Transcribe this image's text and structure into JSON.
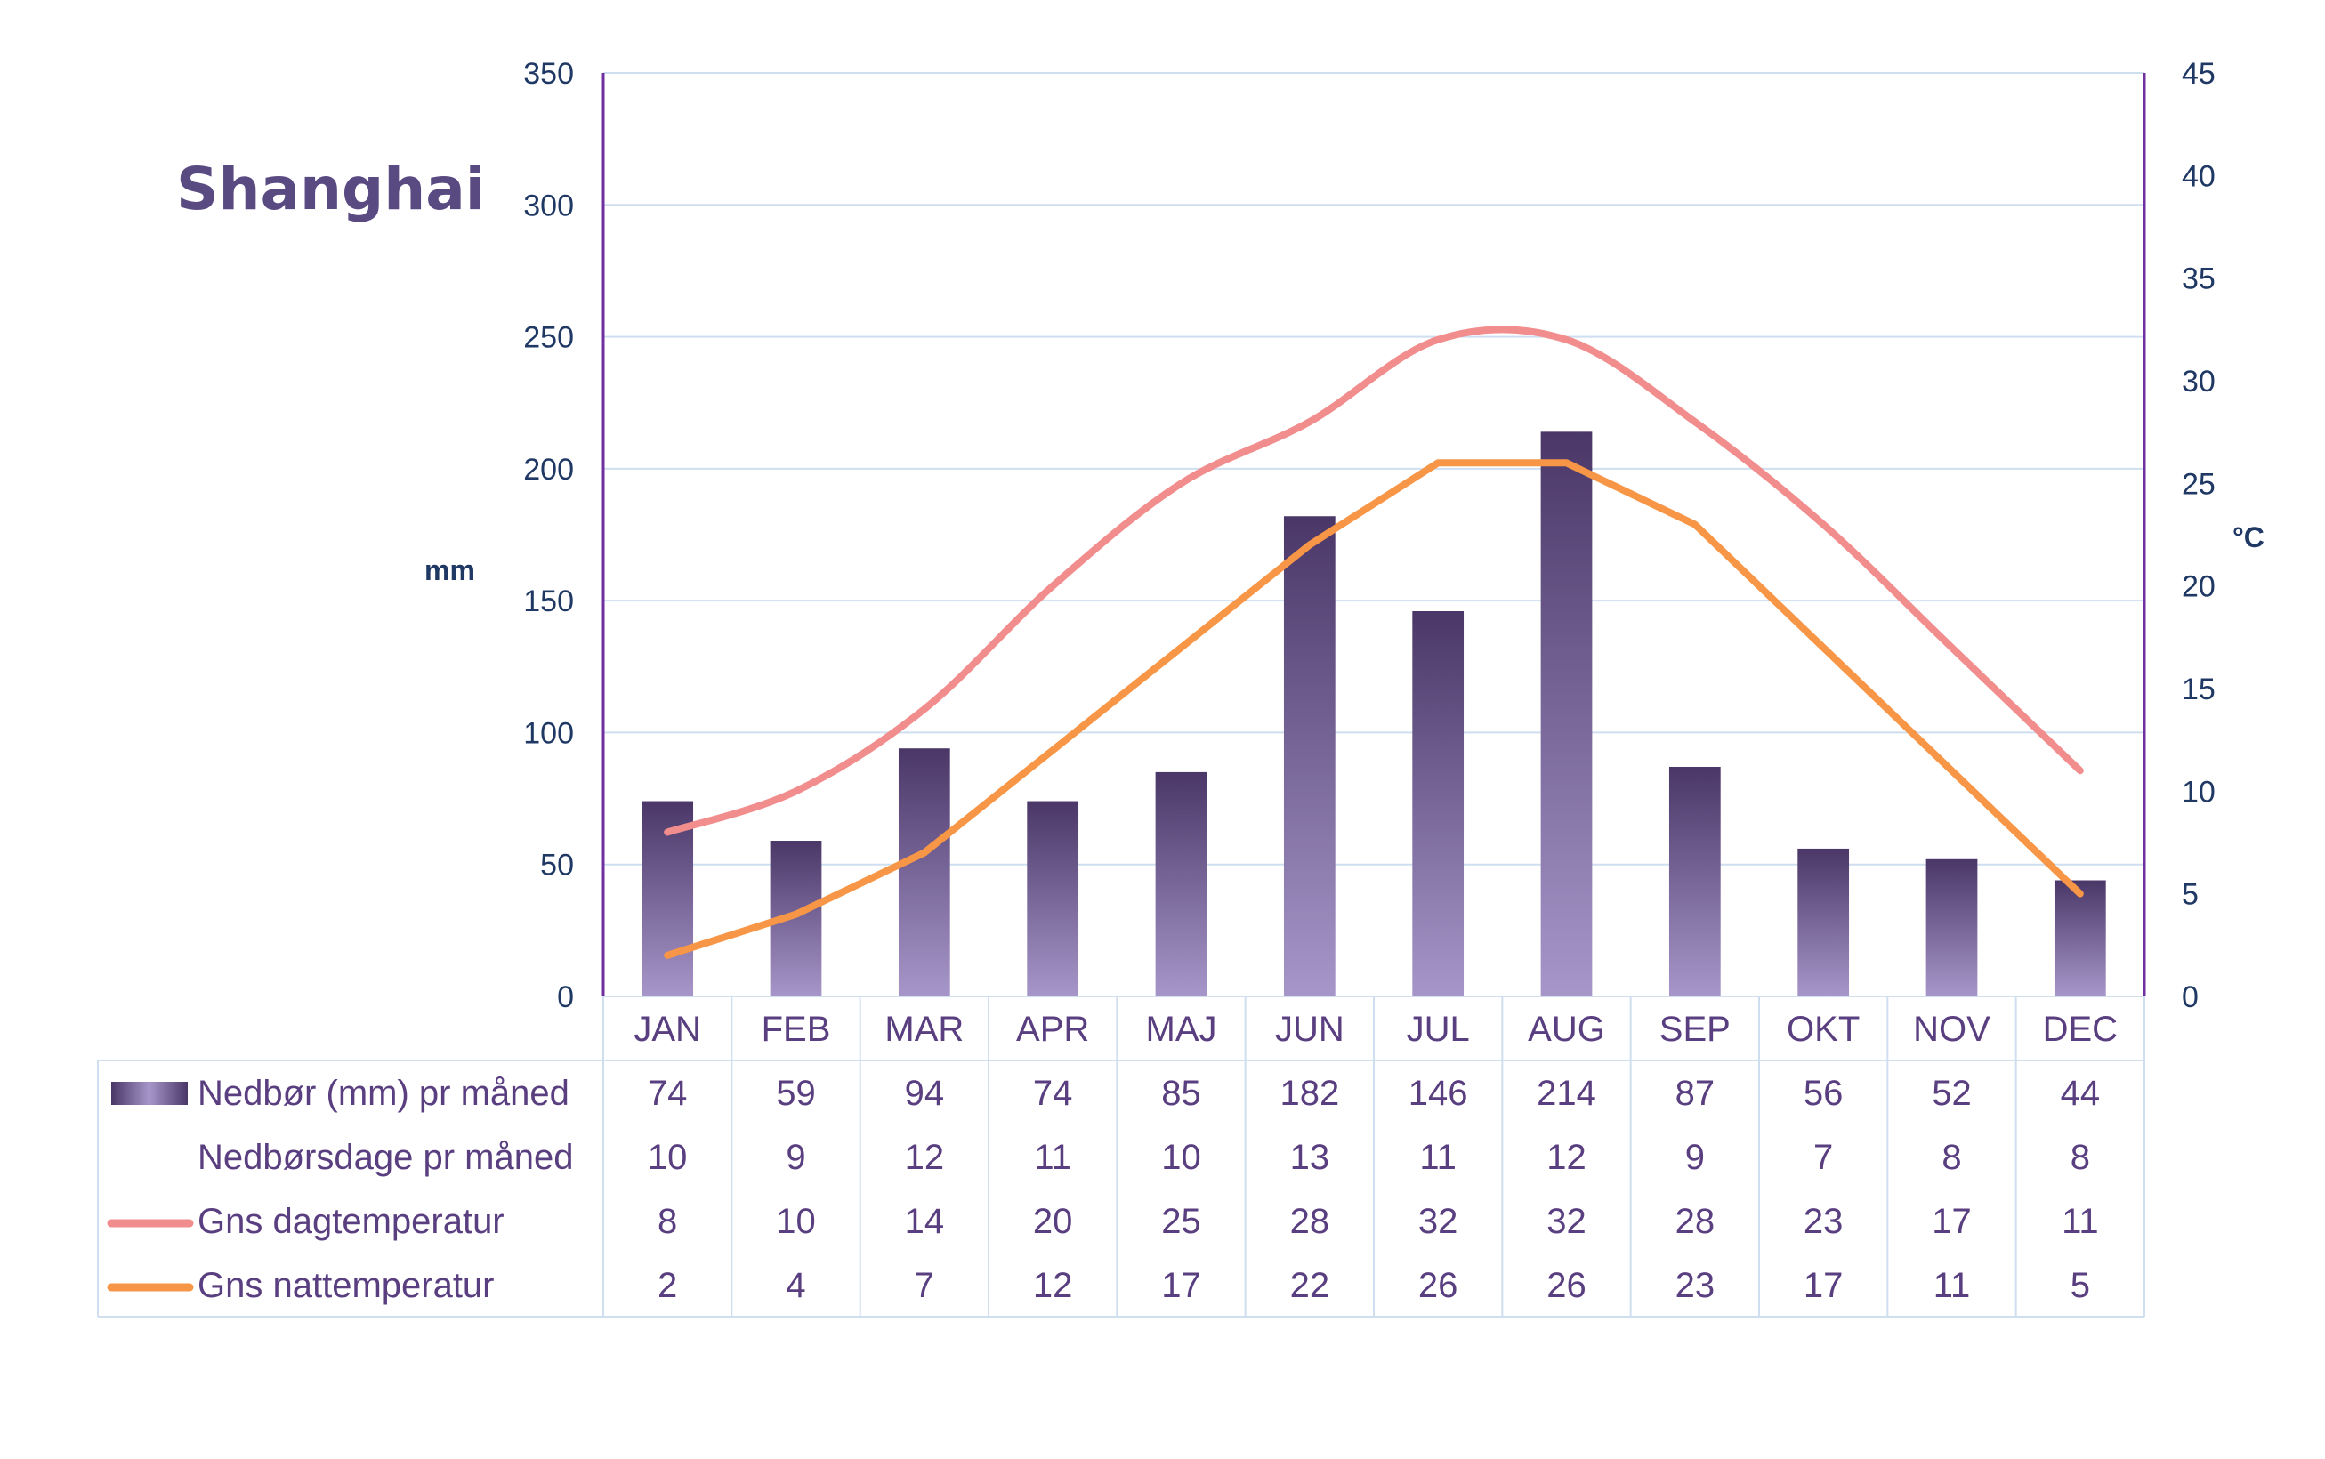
{
  "title": "Shanghai",
  "left_axis_unit": "mm",
  "right_axis_unit": "°C",
  "colors": {
    "bar_dark": "#4a3768",
    "bar_light": "#a796c9",
    "day_line": "#f28d8d",
    "night_line": "#f79646",
    "grid": "#cfdff0",
    "axis": "#7030a0",
    "text": "#5a3f80",
    "tick_text": "#1f3864"
  },
  "chart_data": {
    "type": "bar",
    "categories": [
      "JAN",
      "FEB",
      "MAR",
      "APR",
      "MAJ",
      "JUN",
      "JUL",
      "AUG",
      "SEP",
      "OKT",
      "NOV",
      "DEC"
    ],
    "y_left": {
      "ylim": [
        0,
        350
      ],
      "ticks": [
        "0",
        "50",
        "100",
        "150",
        "200",
        "250",
        "300",
        "350"
      ]
    },
    "y_right": {
      "ylim": [
        0,
        45
      ],
      "ticks": [
        "0",
        "5",
        "10",
        "15",
        "20",
        "25",
        "30",
        "35",
        "40",
        "45"
      ]
    },
    "grid": true,
    "series": [
      {
        "name": "Nedbør (mm) pr måned",
        "type": "bar",
        "axis": "left",
        "values": [
          74,
          59,
          94,
          74,
          85,
          182,
          146,
          214,
          87,
          56,
          52,
          44
        ]
      },
      {
        "name": "Nedbørsdage pr måned",
        "type": "table",
        "values": [
          10,
          9,
          12,
          11,
          10,
          13,
          11,
          12,
          9,
          7,
          8,
          8
        ]
      },
      {
        "name": "Gns dagtemperatur",
        "type": "line",
        "smooth": true,
        "axis": "right",
        "values": [
          8,
          10,
          14,
          20,
          25,
          28,
          32,
          32,
          28,
          23,
          17,
          11
        ]
      },
      {
        "name": "Gns nattemperatur",
        "type": "line",
        "smooth": false,
        "axis": "right",
        "values": [
          2,
          4,
          7,
          12,
          17,
          22,
          26,
          26,
          23,
          17,
          11,
          5
        ]
      }
    ]
  }
}
